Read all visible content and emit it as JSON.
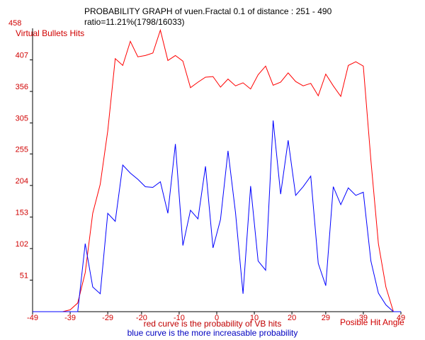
{
  "header": {
    "title": "PROBABILITY GRAPH  of  vuen.Fractal 0.1 of distance : 251 - 490",
    "ratio": "ratio=11.21%(1798/16033)"
  },
  "captions": {
    "red": "red curve is the probability of VB hits",
    "blue": "blue curve is the more increasable probability"
  },
  "colors": {
    "red_series": "#ff0000",
    "blue_series": "#0000ff",
    "axis": "#000000",
    "labels": "#d00000"
  },
  "chart_data": {
    "type": "line",
    "title": "PROBABILITY GRAPH  of  vuen.Fractal 0.1 of distance : 251 - 490",
    "xlabel": "Posible Hit Angle",
    "ylabel": "Virtual Bullets Hits",
    "xlim": [
      -49,
      49
    ],
    "ylim": [
      0,
      458
    ],
    "x_ticks": [
      "-49",
      "-39",
      "-29",
      "-20",
      "-10",
      "0",
      "10",
      "20",
      "29",
      "39",
      "49"
    ],
    "y_ticks": [
      "51",
      "102",
      "153",
      "204",
      "255",
      "305",
      "356",
      "407",
      "458"
    ],
    "grid": false,
    "legend": "none",
    "series": [
      {
        "color": "red",
        "x": [
          -49,
          -47,
          -45,
          -43,
          -41,
          -39,
          -37,
          -35,
          -33,
          -31,
          -29,
          -27,
          -25,
          -23,
          -21,
          -19,
          -17,
          -15,
          -13,
          -11,
          -9,
          -7,
          -5,
          -3,
          -1,
          1,
          3,
          5,
          7,
          9,
          11,
          13,
          15,
          17,
          19,
          21,
          23,
          25,
          27,
          29,
          31,
          33,
          35,
          37,
          39,
          41,
          43,
          45,
          47,
          49
        ],
        "y": [
          0,
          0,
          0,
          0,
          0,
          3,
          14,
          63,
          159,
          206,
          292,
          409,
          398,
          437,
          412,
          414,
          418,
          455,
          406,
          414,
          405,
          362,
          371,
          379,
          380,
          363,
          376,
          365,
          370,
          360,
          383,
          397,
          366,
          371,
          386,
          372,
          365,
          369,
          349,
          384,
          365,
          348,
          398,
          404,
          397,
          245,
          110,
          40,
          0,
          0
        ]
      },
      {
        "color": "blue",
        "x": [
          -49,
          -47,
          -45,
          -43,
          -41,
          -39,
          -37,
          -35,
          -33,
          -31,
          -29,
          -27,
          -25,
          -23,
          -21,
          -19,
          -17,
          -15,
          -13,
          -11,
          -9,
          -7,
          -5,
          -3,
          -1,
          1,
          3,
          5,
          7,
          9,
          11,
          13,
          15,
          17,
          19,
          21,
          23,
          25,
          27,
          29,
          31,
          33,
          35,
          37,
          39,
          41,
          43,
          45,
          47,
          49
        ],
        "y": [
          0,
          0,
          0,
          0,
          0,
          0,
          0,
          110,
          40,
          29,
          159,
          146,
          237,
          224,
          214,
          202,
          201,
          210,
          159,
          271,
          107,
          164,
          150,
          235,
          103,
          149,
          260,
          160,
          29,
          203,
          82,
          67,
          309,
          190,
          277,
          188,
          202,
          219,
          78,
          42,
          202,
          173,
          200,
          188,
          193,
          82,
          30,
          11,
          0,
          0
        ]
      }
    ]
  }
}
